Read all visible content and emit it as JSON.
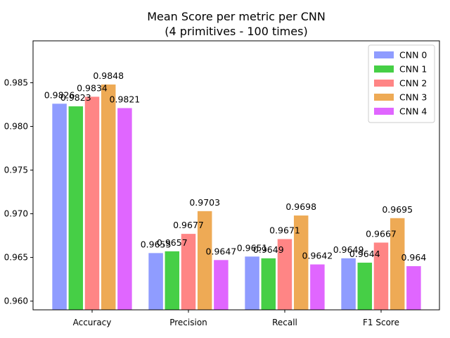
{
  "chart_data": {
    "type": "bar",
    "title": "Mean Score per metric per CNN",
    "subtitle": "(4 primitives - 100 times)",
    "xlabel": "",
    "ylabel": "",
    "categories": [
      "Accuracy",
      "Precision",
      "Recall",
      "F1 Score"
    ],
    "ylim": [
      0.959,
      0.9898
    ],
    "yticks": [
      0.96,
      0.965,
      0.97,
      0.975,
      0.98,
      0.985
    ],
    "ytick_labels": [
      "0.960",
      "0.965",
      "0.970",
      "0.975",
      "0.980",
      "0.985"
    ],
    "legend_position": "top-right",
    "grid": false,
    "series": [
      {
        "name": "CNN 0",
        "color": "#8f9cff",
        "values": [
          0.9826,
          0.9655,
          0.9651,
          0.9649
        ],
        "labels": [
          "0.9826",
          "0.9655",
          "0.9651",
          "0.9649"
        ]
      },
      {
        "name": "CNN 1",
        "color": "#46cf46",
        "values": [
          0.9823,
          0.9657,
          0.9649,
          0.9644
        ],
        "labels": [
          "0.9823",
          "0.9657",
          "0.9649",
          "0.9644"
        ]
      },
      {
        "name": "CNN 2",
        "color": "#ff8585",
        "values": [
          0.9834,
          0.9677,
          0.9671,
          0.9667
        ],
        "labels": [
          "0.9834",
          "0.9677",
          "0.9671",
          "0.9667"
        ]
      },
      {
        "name": "CNN 3",
        "color": "#eeaa55",
        "values": [
          0.9848,
          0.9703,
          0.9698,
          0.9695
        ],
        "labels": [
          "0.9848",
          "0.9703",
          "0.9698",
          "0.9695"
        ]
      },
      {
        "name": "CNN 4",
        "color": "#e066ff",
        "values": [
          0.9821,
          0.9647,
          0.9642,
          0.964
        ],
        "labels": [
          "0.9821",
          "0.9647",
          "0.9642",
          "0.964"
        ]
      }
    ]
  }
}
